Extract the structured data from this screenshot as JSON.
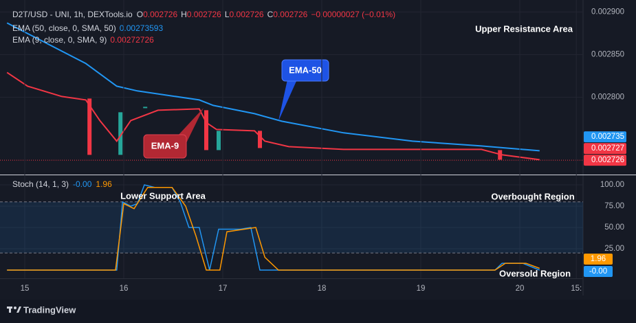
{
  "chart_data": [
    {
      "type": "line",
      "symbol": "D2T/USD - UNI, 1h, DEXTools.io",
      "ohlc": [
        {
          "label": "O",
          "value": 0.002726
        },
        {
          "label": "H",
          "value": 0.002726
        },
        {
          "label": "L",
          "value": 0.002726
        },
        {
          "label": "C",
          "value": 0.002726
        }
      ],
      "change": "−0.00000027 (−0.01%)",
      "xlim": [
        -4.33,
        135.33
      ],
      "ylim": [
        0.00271,
        0.002914
      ],
      "yticks": [
        {
          "value": 0.0028,
          "label": "0.002800"
        },
        {
          "value": 0.00285,
          "label": "0.002850"
        },
        {
          "value": 0.0029,
          "label": "0.002900"
        }
      ],
      "grid": true,
      "series": [
        {
          "name": "EMA (50, close, 0, SMA, 50)",
          "legend_value": 0.00273593,
          "color": "#2196f3",
          "x": [
            -4.3,
            14.8,
            22.3,
            27.3,
            42.3,
            45.7,
            55.7,
            62.3,
            77.3,
            94,
            110.7,
            124.8
          ],
          "values": [
            0.0028871,
            0.0028395,
            0.0028129,
            0.0028073,
            0.0027968,
            0.0027903,
            0.0027806,
            0.0027718,
            0.0027581,
            0.0027484,
            0.0027427,
            0.0027371
          ]
        },
        {
          "name": "EMA (9, close, 0, SMA, 9)",
          "legend_value": 0.00272726,
          "color": "#f23645",
          "x": [
            -4.3,
            0.7,
            9,
            14.8,
            18.2,
            22.3,
            25.7,
            32.3,
            42.3,
            44,
            46.5,
            55.7,
            58.2,
            64,
            77.3,
            110.7,
            115.7,
            124.8
          ],
          "values": [
            0.002829,
            0.0028129,
            0.0028008,
            0.0027968,
            0.0027726,
            0.0027484,
            0.0027726,
            0.0027847,
            0.0027863,
            0.0027702,
            0.0027621,
            0.0027605,
            0.0027484,
            0.0027419,
            0.0027387,
            0.0027387,
            0.0027323,
            0.0027266
          ]
        }
      ],
      "candles": {
        "x": [
          15.7,
          23.2,
          29.2,
          44,
          47,
          57,
          115.2
        ],
        "open": [
          0.0027984,
          0.0027323,
          0.0027871,
          0.0027847,
          0.0027379,
          0.0027605,
          0.0027379
        ],
        "close": [
          0.0027323,
          0.0027823,
          0.0027887,
          0.0027379,
          0.0027605,
          0.0027403,
          0.0027266
        ],
        "up_color": "#26a69a",
        "down_color": "#f23645"
      },
      "price_labels": [
        {
          "value": 0.002735,
          "color": "#2196f3"
        },
        {
          "value": 0.002727,
          "color": "#f23645"
        },
        {
          "value": 0.002726,
          "color": "#f23645"
        }
      ],
      "annotations": [
        "Upper Resistance Area",
        "EMA-50",
        "EMA-9"
      ]
    },
    {
      "type": "line",
      "title": "Stoch (14, 1, 3)",
      "xlim": [
        -4.33,
        135.33
      ],
      "xticks": [
        {
          "value": 0,
          "label": "15"
        },
        {
          "value": 24,
          "label": "16"
        },
        {
          "value": 48,
          "label": "17"
        },
        {
          "value": 72,
          "label": "18"
        },
        {
          "value": 96,
          "label": "19"
        },
        {
          "value": 120,
          "label": "20"
        },
        {
          "value": 133.7,
          "label": "15:"
        }
      ],
      "ylim": [
        -9.7,
        110.5
      ],
      "yticks": [
        {
          "value": 25,
          "label": "25.00"
        },
        {
          "value": 50,
          "label": "50.00"
        },
        {
          "value": 75,
          "label": "75.00"
        },
        {
          "value": 100,
          "label": "100.00"
        }
      ],
      "bands": [
        20,
        80
      ],
      "series": [
        {
          "color": "#2196f3",
          "last_label": "-0.00",
          "x": [
            -4.3,
            22.3,
            23.7,
            25.7,
            27.3,
            29,
            31.5,
            35.7,
            37.7,
            39.8,
            42.3,
            44.8,
            47,
            49.8,
            52.3,
            54.8,
            57,
            59,
            60.7,
            114,
            115.7,
            120.7,
            124.8
          ],
          "values": [
            0,
            0,
            80,
            75,
            78,
            100,
            97,
            97,
            80,
            50,
            50,
            0,
            48,
            48,
            48,
            50,
            0,
            0,
            0,
            0,
            8,
            8,
            0
          ]
        },
        {
          "color": "#ff9800",
          "last_label": "1.96",
          "x": [
            -4.3,
            22,
            24,
            26.5,
            29.8,
            35.7,
            39,
            41.5,
            44,
            47.3,
            49,
            53.2,
            56,
            58.2,
            61.5,
            114,
            116.5,
            121.5,
            124.8
          ],
          "values": [
            0,
            0,
            78,
            72,
            97,
            97,
            75,
            40,
            0,
            0,
            45,
            48,
            50,
            15,
            0,
            0,
            8,
            8,
            1.96
          ]
        }
      ],
      "annotations": [
        "Lower Support Area",
        "Overbought Region",
        "Oversold Region"
      ]
    }
  ],
  "footer": {
    "brand": "TradingView"
  }
}
